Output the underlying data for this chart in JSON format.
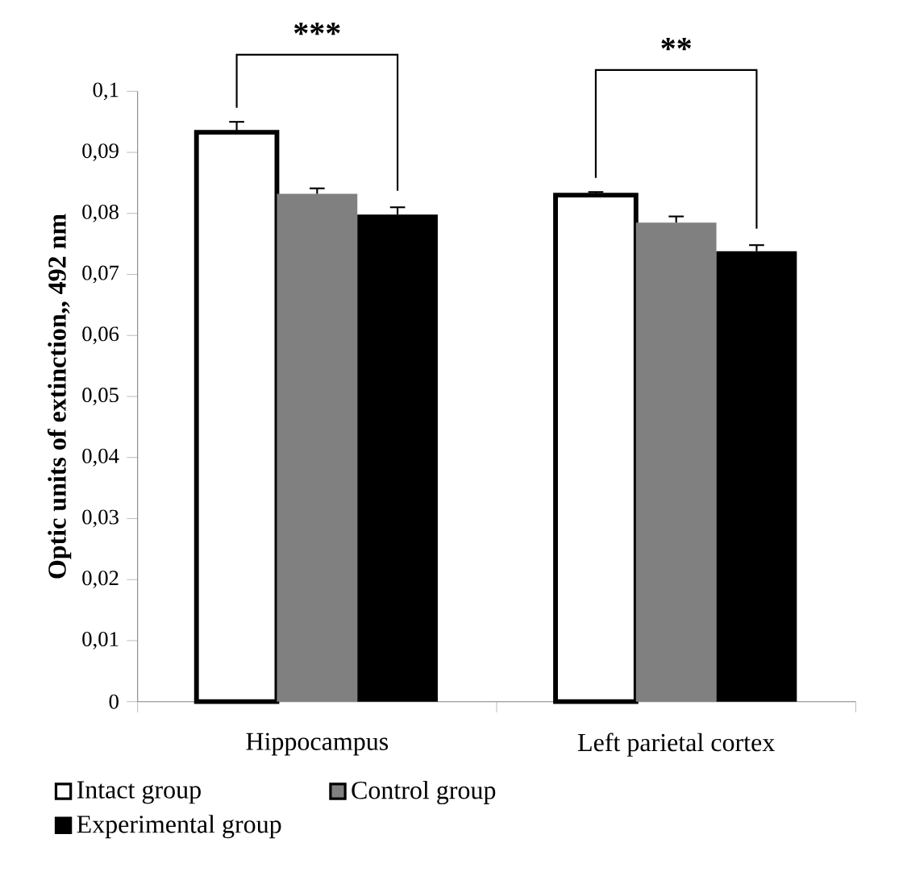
{
  "chart_data": {
    "type": "bar",
    "ylabel": "Optic units of extinction,, 492 nm",
    "categories": [
      "Hippocampus",
      "Left parietal cortex"
    ],
    "series": [
      {
        "name": "Intact group",
        "color": "#ffffff",
        "values": [
          0.0933,
          0.083
        ],
        "errors": [
          0.0017,
          0.0005
        ]
      },
      {
        "name": "Control group",
        "color": "#808080",
        "values": [
          0.0832,
          0.0785
        ],
        "errors": [
          0.0009,
          0.001
        ]
      },
      {
        "name": "Experimental group",
        "color": "#000000",
        "values": [
          0.0798,
          0.0738
        ],
        "errors": [
          0.0012,
          0.001
        ]
      }
    ],
    "ylim": [
      0,
      0.1
    ],
    "yticks": [
      0,
      {
        "value": 0.01,
        "label": "0,01"
      },
      {
        "value": 0.02,
        "label": "0,02"
      },
      {
        "value": 0.03,
        "label": "0,03"
      },
      {
        "value": 0.04,
        "label": "0,04"
      },
      {
        "value": 0.05,
        "label": "0,05"
      },
      {
        "value": 0.06,
        "label": "0,06"
      },
      {
        "value": 0.07,
        "label": "0,07"
      },
      {
        "value": 0.08,
        "label": "0,08"
      },
      {
        "value": 0.09,
        "label": "0,09"
      },
      {
        "value": 0.1,
        "label": "0,1"
      }
    ],
    "grid": false,
    "legend": "bottom",
    "annotations": [
      "***",
      "**"
    ]
  }
}
